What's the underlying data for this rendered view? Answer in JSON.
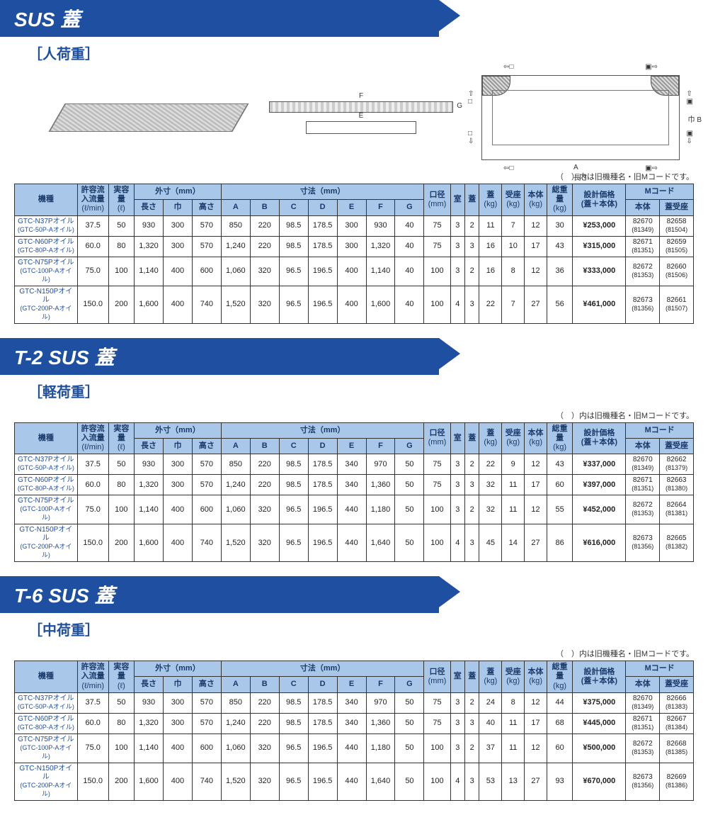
{
  "note_text": "（　）内は旧機種名・旧Mコードです。",
  "headers": {
    "model": "機種",
    "flow": "許容流\n入流量",
    "flow_unit": "(ℓ/min)",
    "cap": "実容量",
    "cap_unit": "(ℓ)",
    "outer": "外寸（mm）",
    "len": "長さ",
    "wid": "巾",
    "hei": "高さ",
    "dims": "寸法（mm）",
    "A": "A",
    "B": "B",
    "C": "C",
    "D": "D",
    "E": "E",
    "F": "F",
    "G": "G",
    "dia": "口径",
    "dia_unit": "(mm)",
    "room": "室",
    "lid": "蓋",
    "lid_kg": "蓋",
    "seat_kg": "受座",
    "body_kg": "本体",
    "total_kg": "総重量",
    "kg": "(kg)",
    "price": "設計価格\n(蓋＋本体)",
    "mcode": "Mコード",
    "mcode_body": "本体",
    "mcode_seat": "蓋受座"
  },
  "sections": [
    {
      "title": "SUS 蓋",
      "subtitle": "［人荷重］",
      "show_diagram": true,
      "rows": [
        {
          "model": "GTC-N37Pオイル",
          "model_sub": "(GTC-50P-Aオイル)",
          "flow": "37.5",
          "cap": "50",
          "len": "930",
          "wid": "300",
          "hei": "570",
          "A": "850",
          "B": "220",
          "C": "98.5",
          "D": "178.5",
          "E": "300",
          "F": "930",
          "G": "40",
          "dia": "75",
          "room": "3",
          "lid": "2",
          "lidkg": "11",
          "seatkg": "7",
          "bodykg": "12",
          "totalkg": "30",
          "price": "¥253,000",
          "mb": "82670",
          "mb2": "(81349)",
          "ms": "82658",
          "ms2": "(81504)"
        },
        {
          "model": "GTC-N60Pオイル",
          "model_sub": "(GTC-80P-Aオイル)",
          "flow": "60.0",
          "cap": "80",
          "len": "1,320",
          "wid": "300",
          "hei": "570",
          "A": "1,240",
          "B": "220",
          "C": "98.5",
          "D": "178.5",
          "E": "300",
          "F": "1,320",
          "G": "40",
          "dia": "75",
          "room": "3",
          "lid": "3",
          "lidkg": "16",
          "seatkg": "10",
          "bodykg": "17",
          "totalkg": "43",
          "price": "¥315,000",
          "mb": "82671",
          "mb2": "(81351)",
          "ms": "82659",
          "ms2": "(81505)"
        },
        {
          "model": "GTC-N75Pオイル",
          "model_sub": "(GTC-100P-Aオイル)",
          "flow": "75.0",
          "cap": "100",
          "len": "1,140",
          "wid": "400",
          "hei": "600",
          "A": "1,060",
          "B": "320",
          "C": "96.5",
          "D": "196.5",
          "E": "400",
          "F": "1,140",
          "G": "40",
          "dia": "100",
          "room": "3",
          "lid": "2",
          "lidkg": "16",
          "seatkg": "8",
          "bodykg": "12",
          "totalkg": "36",
          "price": "¥333,000",
          "mb": "82672",
          "mb2": "(81353)",
          "ms": "82660",
          "ms2": "(81506)"
        },
        {
          "model": "GTC-N150Pオイル",
          "model_sub": "(GTC-200P-Aオイル)",
          "flow": "150.0",
          "cap": "200",
          "len": "1,600",
          "wid": "400",
          "hei": "740",
          "A": "1,520",
          "B": "320",
          "C": "96.5",
          "D": "196.5",
          "E": "400",
          "F": "1,600",
          "G": "40",
          "dia": "100",
          "room": "4",
          "lid": "3",
          "lidkg": "22",
          "seatkg": "7",
          "bodykg": "27",
          "totalkg": "56",
          "price": "¥461,000",
          "mb": "82673",
          "mb2": "(81356)",
          "ms": "82661",
          "ms2": "(81507)"
        }
      ]
    },
    {
      "title": "T-2 SUS 蓋",
      "subtitle": "［軽荷重］",
      "show_diagram": false,
      "rows": [
        {
          "model": "GTC-N37Pオイル",
          "model_sub": "(GTC-50P-Aオイル)",
          "flow": "37.5",
          "cap": "50",
          "len": "930",
          "wid": "300",
          "hei": "570",
          "A": "850",
          "B": "220",
          "C": "98.5",
          "D": "178.5",
          "E": "340",
          "F": "970",
          "G": "50",
          "dia": "75",
          "room": "3",
          "lid": "2",
          "lidkg": "22",
          "seatkg": "9",
          "bodykg": "12",
          "totalkg": "43",
          "price": "¥337,000",
          "mb": "82670",
          "mb2": "(81349)",
          "ms": "82662",
          "ms2": "(81379)"
        },
        {
          "model": "GTC-N60Pオイル",
          "model_sub": "(GTC-80P-Aオイル)",
          "flow": "60.0",
          "cap": "80",
          "len": "1,320",
          "wid": "300",
          "hei": "570",
          "A": "1,240",
          "B": "220",
          "C": "98.5",
          "D": "178.5",
          "E": "340",
          "F": "1,360",
          "G": "50",
          "dia": "75",
          "room": "3",
          "lid": "3",
          "lidkg": "32",
          "seatkg": "11",
          "bodykg": "17",
          "totalkg": "60",
          "price": "¥397,000",
          "mb": "82671",
          "mb2": "(81351)",
          "ms": "82663",
          "ms2": "(81380)"
        },
        {
          "model": "GTC-N75Pオイル",
          "model_sub": "(GTC-100P-Aオイル)",
          "flow": "75.0",
          "cap": "100",
          "len": "1,140",
          "wid": "400",
          "hei": "600",
          "A": "1,060",
          "B": "320",
          "C": "96.5",
          "D": "196.5",
          "E": "440",
          "F": "1,180",
          "G": "50",
          "dia": "100",
          "room": "3",
          "lid": "2",
          "lidkg": "32",
          "seatkg": "11",
          "bodykg": "12",
          "totalkg": "55",
          "price": "¥452,000",
          "mb": "82672",
          "mb2": "(81353)",
          "ms": "82664",
          "ms2": "(81381)"
        },
        {
          "model": "GTC-N150Pオイル",
          "model_sub": "(GTC-200P-Aオイル)",
          "flow": "150.0",
          "cap": "200",
          "len": "1,600",
          "wid": "400",
          "hei": "740",
          "A": "1,520",
          "B": "320",
          "C": "96.5",
          "D": "196.5",
          "E": "440",
          "F": "1,640",
          "G": "50",
          "dia": "100",
          "room": "4",
          "lid": "3",
          "lidkg": "45",
          "seatkg": "14",
          "bodykg": "27",
          "totalkg": "86",
          "price": "¥616,000",
          "mb": "82673",
          "mb2": "(81356)",
          "ms": "82665",
          "ms2": "(81382)"
        }
      ]
    },
    {
      "title": "T-6 SUS 蓋",
      "subtitle": "［中荷重］",
      "show_diagram": false,
      "rows": [
        {
          "model": "GTC-N37Pオイル",
          "model_sub": "(GTC-50P-Aオイル)",
          "flow": "37.5",
          "cap": "50",
          "len": "930",
          "wid": "300",
          "hei": "570",
          "A": "850",
          "B": "220",
          "C": "98.5",
          "D": "178.5",
          "E": "340",
          "F": "970",
          "G": "50",
          "dia": "75",
          "room": "3",
          "lid": "2",
          "lidkg": "24",
          "seatkg": "8",
          "bodykg": "12",
          "totalkg": "44",
          "price": "¥375,000",
          "mb": "82670",
          "mb2": "(81349)",
          "ms": "82666",
          "ms2": "(81383)"
        },
        {
          "model": "GTC-N60Pオイル",
          "model_sub": "(GTC-80P-Aオイル)",
          "flow": "60.0",
          "cap": "80",
          "len": "1,320",
          "wid": "300",
          "hei": "570",
          "A": "1,240",
          "B": "220",
          "C": "98.5",
          "D": "178.5",
          "E": "340",
          "F": "1,360",
          "G": "50",
          "dia": "75",
          "room": "3",
          "lid": "3",
          "lidkg": "40",
          "seatkg": "11",
          "bodykg": "17",
          "totalkg": "68",
          "price": "¥445,000",
          "mb": "82671",
          "mb2": "(81351)",
          "ms": "82667",
          "ms2": "(81384)"
        },
        {
          "model": "GTC-N75Pオイル",
          "model_sub": "(GTC-100P-Aオイル)",
          "flow": "75.0",
          "cap": "100",
          "len": "1,140",
          "wid": "400",
          "hei": "600",
          "A": "1,060",
          "B": "320",
          "C": "96.5",
          "D": "196.5",
          "E": "440",
          "F": "1,180",
          "G": "50",
          "dia": "100",
          "room": "3",
          "lid": "2",
          "lidkg": "37",
          "seatkg": "11",
          "bodykg": "12",
          "totalkg": "60",
          "price": "¥500,000",
          "mb": "82672",
          "mb2": "(81353)",
          "ms": "82668",
          "ms2": "(81385)"
        },
        {
          "model": "GTC-N150Pオイル",
          "model_sub": "(GTC-200P-Aオイル)",
          "flow": "150.0",
          "cap": "200",
          "len": "1,600",
          "wid": "400",
          "hei": "740",
          "A": "1,520",
          "B": "320",
          "C": "96.5",
          "D": "196.5",
          "E": "440",
          "F": "1,640",
          "G": "50",
          "dia": "100",
          "room": "4",
          "lid": "3",
          "lidkg": "53",
          "seatkg": "13",
          "bodykg": "27",
          "totalkg": "93",
          "price": "¥670,000",
          "mb": "82673",
          "mb2": "(81356)",
          "ms": "82669",
          "ms2": "(81386)"
        }
      ]
    }
  ],
  "colors": {
    "header_bg": "#a9c7e8",
    "title_bg": "#1f4fa0",
    "title_text": "#ffffff",
    "accent_text": "#1f4fa0",
    "border": "#333333"
  }
}
